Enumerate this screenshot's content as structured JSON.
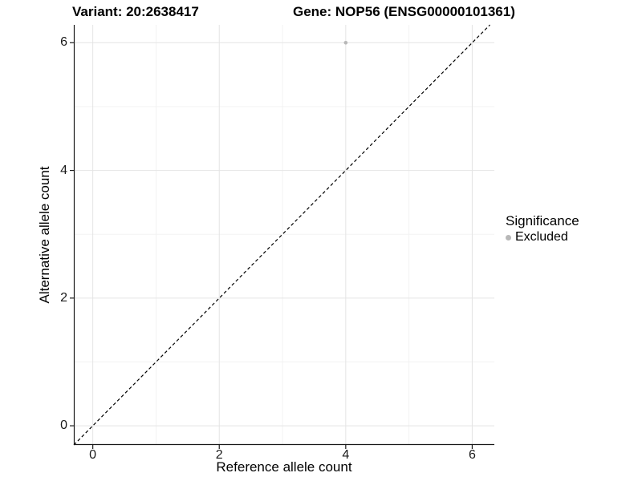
{
  "chart_data": {
    "type": "scatter",
    "title_left": "Variant: 20:2638417",
    "title_right": "Gene: NOP56 (ENSG00000101361)",
    "xlabel": "Reference allele count",
    "ylabel": "Alternative allele count",
    "xlim": [
      -0.3,
      6.35
    ],
    "ylim": [
      -0.3,
      6.28
    ],
    "x_ticks": [
      0,
      2,
      4,
      6
    ],
    "y_ticks": [
      0,
      2,
      4,
      6
    ],
    "x_minor_ticks": [
      1,
      3,
      5
    ],
    "y_minor_ticks": [
      1,
      3,
      5
    ],
    "grid": true,
    "points": [
      {
        "x": 4,
        "y": 6,
        "series": "Excluded"
      }
    ],
    "reference_line": {
      "style": "dashed",
      "slope": 1,
      "intercept": 0
    },
    "legend": {
      "title": "Significance",
      "position": "right",
      "items": [
        {
          "label": "Excluded",
          "color": "#b8b8b8"
        }
      ]
    },
    "colors": {
      "major_grid": "#e4e4e4",
      "minor_grid": "#f1f1f1",
      "axis_line": "#1a1a1a",
      "dashed_line": "#000000",
      "point": "#b8b8b8"
    }
  }
}
